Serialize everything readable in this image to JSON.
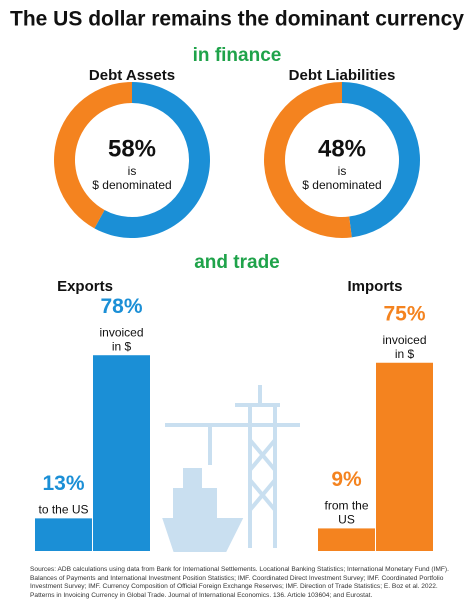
{
  "title": "The US dollar remains the dominant currency",
  "sections": [
    "in finance",
    "and trade"
  ],
  "source": "Sources: ADB calculations using data from Bank for International Settlements. Locational Banking Statistics; International Monetary Fund (IMF). Balances of Payments and International Investment Position Statistics; IMF. Coordinated Direct Investment Survey; IMF. Coordinated Portfolio Investment Survey; IMF. Currency Composition of Official Foreign Exchange Reserves; IMF. Direction of Trade Statistics; E. Boz et al. 2022. Patterns in Invoicing Currency in Global Trade. Journal of International Economics. 136. Article 103604; and Eurostat.",
  "chart_data": [
    {
      "type": "donut",
      "title": "Debt Assets",
      "values": [
        58,
        42
      ],
      "value_labels": [
        "58%",
        null
      ],
      "colors": [
        "#1b8fd6",
        "#f4831f"
      ],
      "caption": [
        "is",
        "$ denominated"
      ]
    },
    {
      "type": "donut",
      "title": "Debt Liabilities",
      "values": [
        48,
        52
      ],
      "value_labels": [
        "48%",
        null
      ],
      "colors": [
        "#1b8fd6",
        "#f4831f"
      ],
      "caption": [
        "is",
        "$ denominated"
      ]
    },
    {
      "type": "bar",
      "title": "Exports",
      "values": [
        13,
        78
      ],
      "value_labels": [
        "13%",
        "78%"
      ],
      "captions": [
        [
          "to the US"
        ],
        [
          "invoiced",
          "in $"
        ]
      ],
      "color": "#1b8fd6",
      "ylim": [
        0,
        100
      ]
    },
    {
      "type": "bar",
      "title": "Imports",
      "values": [
        9,
        75
      ],
      "value_labels": [
        "9%",
        "75%"
      ],
      "captions": [
        [
          "from the",
          "US"
        ],
        [
          "invoiced",
          "in $"
        ]
      ],
      "color": "#f4831f",
      "ylim": [
        0,
        100
      ]
    }
  ]
}
